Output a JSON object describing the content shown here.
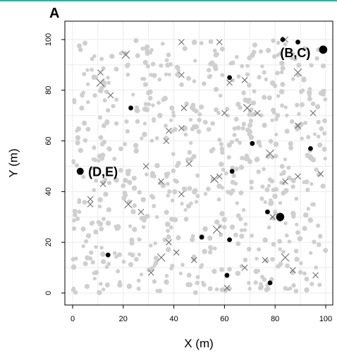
{
  "panel_label": "A",
  "chart_data": {
    "type": "scatter",
    "title": "",
    "xlabel": "X (m)",
    "ylabel": "Y (m)",
    "xlim": [
      0,
      100
    ],
    "ylim": [
      0,
      100
    ],
    "xticks": [
      "0",
      "20",
      "40",
      "60",
      "80",
      "100"
    ],
    "yticks": [
      "0",
      "20",
      "40",
      "60",
      "80",
      "100"
    ],
    "grid": true,
    "annotations": [
      {
        "text": "(B,C)",
        "x": 88,
        "y": 95
      },
      {
        "text": "(D,E)",
        "x": 12,
        "y": 48
      }
    ],
    "series": [
      {
        "marker": "filled-circle-black",
        "points": [
          [
            3,
            48
          ],
          [
            23,
            73
          ],
          [
            14,
            15
          ],
          [
            62,
            85
          ],
          [
            71,
            59
          ],
          [
            63,
            48
          ],
          [
            94,
            57
          ],
          [
            51,
            22
          ],
          [
            62,
            21
          ],
          [
            77,
            32
          ],
          [
            82,
            30
          ],
          [
            61,
            7
          ],
          [
            78,
            4
          ],
          [
            83,
            100
          ],
          [
            89,
            99
          ],
          [
            99,
            96
          ]
        ]
      },
      {
        "marker": "cross-grey",
        "points": [
          [
            21,
            94
          ],
          [
            43,
            99
          ],
          [
            58,
            99
          ],
          [
            84,
            100
          ],
          [
            11,
            87
          ],
          [
            11,
            83
          ],
          [
            15,
            78
          ],
          [
            43,
            86
          ],
          [
            62,
            83
          ],
          [
            68,
            84
          ],
          [
            89,
            87
          ],
          [
            44,
            73
          ],
          [
            38,
            64
          ],
          [
            43,
            65
          ],
          [
            60,
            71
          ],
          [
            69,
            73
          ],
          [
            73,
            71
          ],
          [
            95,
            71
          ],
          [
            89,
            66
          ],
          [
            37,
            60
          ],
          [
            78,
            55
          ],
          [
            29,
            50
          ],
          [
            46,
            51
          ],
          [
            12,
            43
          ],
          [
            35,
            44
          ],
          [
            56,
            45
          ],
          [
            58,
            46
          ],
          [
            43,
            39
          ],
          [
            7,
            37
          ],
          [
            7,
            35
          ],
          [
            22,
            35
          ],
          [
            27,
            32
          ],
          [
            98,
            47
          ],
          [
            89,
            46
          ],
          [
            84,
            44
          ],
          [
            57,
            25
          ],
          [
            79,
            30
          ],
          [
            38,
            20
          ],
          [
            41,
            16
          ],
          [
            48,
            13
          ],
          [
            35,
            14
          ],
          [
            31,
            8
          ],
          [
            61,
            2
          ],
          [
            68,
            10
          ],
          [
            76,
            13
          ],
          [
            84,
            14
          ],
          [
            87,
            9
          ],
          [
            96,
            7
          ]
        ]
      },
      {
        "marker": "background-circle-lightgrey",
        "count": 700
      }
    ]
  },
  "colors": {
    "background_points": "#cfcfcf",
    "crosses": "#6e6e6e",
    "focal_points": "#000000",
    "grid": "#ebebeb",
    "top_rule": "#22b8a0"
  }
}
